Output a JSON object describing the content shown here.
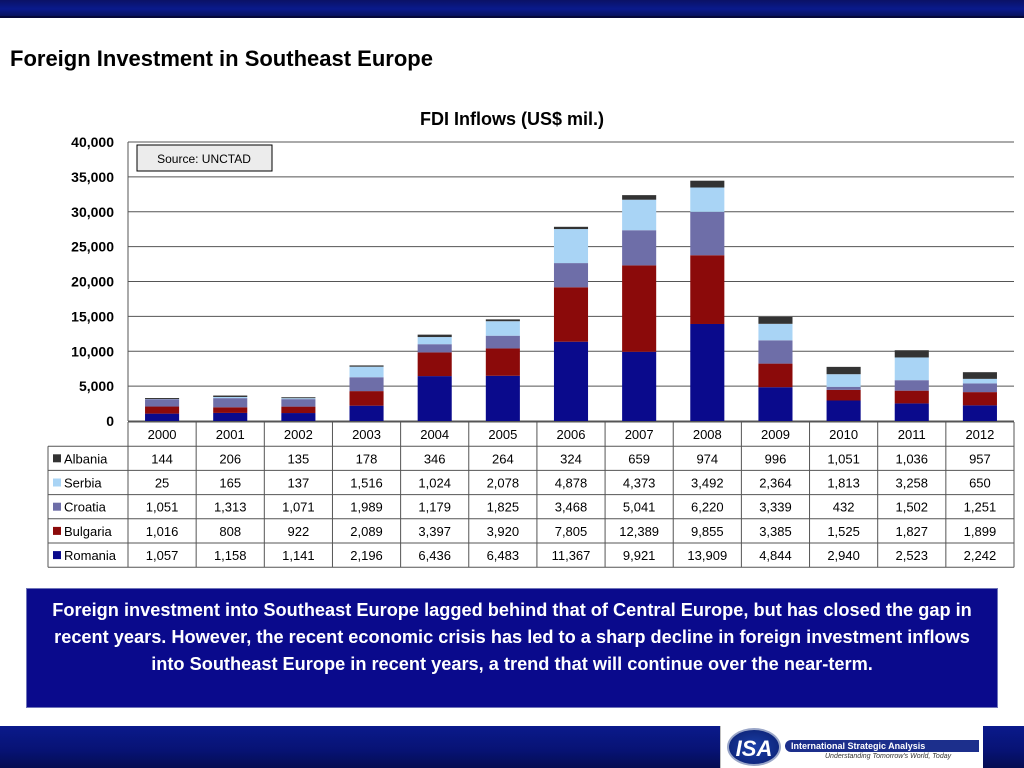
{
  "page": {
    "title": "Foreign Investment in Southeast Europe",
    "summary": "Foreign investment into Southeast Europe lagged behind that of Central Europe, but has closed the gap in recent years.  However, the recent economic crisis has led to a sharp decline in foreign investment inflows into Southeast Europe in recent years, a trend that will continue over the near-term."
  },
  "logo": {
    "mark": "ISA",
    "name": "International Strategic Analysis",
    "tagline": "Understanding Tomorrow's World, Today"
  },
  "chart_data": {
    "type": "bar",
    "stacked": true,
    "title": "FDI Inflows (US$ mil.)",
    "source_label": "Source: UNCTAD",
    "categories": [
      "2000",
      "2001",
      "2002",
      "2003",
      "2004",
      "2005",
      "2006",
      "2007",
      "2008",
      "2009",
      "2010",
      "2011",
      "2012"
    ],
    "ylim": [
      0,
      40000
    ],
    "yticks": [
      0,
      5000,
      10000,
      15000,
      20000,
      25000,
      30000,
      35000,
      40000
    ],
    "ytick_labels": [
      "0",
      "5,000",
      "10,000",
      "15,000",
      "20,000",
      "25,000",
      "30,000",
      "35,000",
      "40,000"
    ],
    "grid": true,
    "data_table": true,
    "series": [
      {
        "name": "Romania",
        "color": "#0a0a8c",
        "values": [
          1057,
          1158,
          1141,
          2196,
          6436,
          6483,
          11367,
          9921,
          13909,
          4844,
          2940,
          2523,
          2242
        ],
        "labels": [
          "1,057",
          "1,158",
          "1,141",
          "2,196",
          "6,436",
          "6,483",
          "11,367",
          "9,921",
          "13,909",
          "4,844",
          "2,940",
          "2,523",
          "2,242"
        ]
      },
      {
        "name": "Bulgaria",
        "color": "#8b0a0a",
        "values": [
          1016,
          808,
          922,
          2089,
          3397,
          3920,
          7805,
          12389,
          9855,
          3385,
          1525,
          1827,
          1899
        ],
        "labels": [
          "1,016",
          "808",
          "922",
          "2,089",
          "3,397",
          "3,920",
          "7,805",
          "12,389",
          "9,855",
          "3,385",
          "1,525",
          "1,827",
          "1,899"
        ]
      },
      {
        "name": "Croatia",
        "color": "#6e6ea8",
        "values": [
          1051,
          1313,
          1071,
          1989,
          1179,
          1825,
          3468,
          5041,
          6220,
          3339,
          432,
          1502,
          1251
        ],
        "labels": [
          "1,051",
          "1,313",
          "1,071",
          "1,989",
          "1,179",
          "1,825",
          "3,468",
          "5,041",
          "6,220",
          "3,339",
          "432",
          "1,502",
          "1,251"
        ]
      },
      {
        "name": "Serbia",
        "color": "#a9d4f5",
        "values": [
          25,
          165,
          137,
          1516,
          1024,
          2078,
          4878,
          4373,
          3492,
          2364,
          1813,
          3258,
          650
        ],
        "labels": [
          "25",
          "165",
          "137",
          "1,516",
          "1,024",
          "2,078",
          "4,878",
          "4,373",
          "3,492",
          "2,364",
          "1,813",
          "3,258",
          "650"
        ]
      },
      {
        "name": "Albania",
        "color": "#333333",
        "values": [
          144,
          206,
          135,
          178,
          346,
          264,
          324,
          659,
          974,
          996,
          1051,
          1036,
          957
        ],
        "labels": [
          "144",
          "206",
          "135",
          "178",
          "346",
          "264",
          "324",
          "659",
          "974",
          "996",
          "1,051",
          "1,036",
          "957"
        ]
      }
    ]
  }
}
